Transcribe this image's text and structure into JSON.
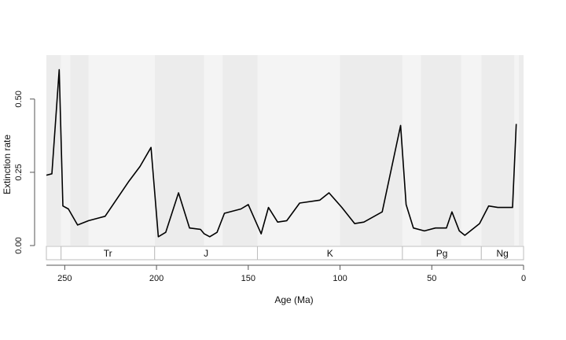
{
  "chart_data": {
    "type": "line",
    "title": "",
    "xlabel": "Age (Ma)",
    "ylabel": "Extinction rate",
    "x_reversed": true,
    "xlim": [
      260,
      0
    ],
    "ylim": [
      0,
      0.65
    ],
    "x_ticks": [
      "250",
      "200",
      "150",
      "100",
      "50",
      "0"
    ],
    "y_ticks": [
      "0.00",
      "0.25",
      "0.50"
    ],
    "grid": false,
    "line_color": "#000000",
    "band_colors": [
      "#ececec",
      "#f4f4f4"
    ],
    "stage_bands": [
      [
        260,
        252
      ],
      [
        252,
        247
      ],
      [
        247,
        237
      ],
      [
        237,
        201
      ],
      [
        201,
        174
      ],
      [
        174,
        164
      ],
      [
        164,
        145
      ],
      [
        145,
        100
      ],
      [
        100,
        66
      ],
      [
        66,
        56
      ],
      [
        56,
        34
      ],
      [
        34,
        23
      ],
      [
        23,
        5
      ],
      [
        5,
        2.6
      ],
      [
        2.6,
        0
      ]
    ],
    "periods": [
      {
        "name": "",
        "start": 260,
        "end": 252
      },
      {
        "name": "Tr",
        "start": 252,
        "end": 201
      },
      {
        "name": "J",
        "start": 201,
        "end": 145
      },
      {
        "name": "K",
        "start": 145,
        "end": 66
      },
      {
        "name": "Pg",
        "start": 66,
        "end": 23
      },
      {
        "name": "Ng",
        "start": 23,
        "end": 0
      }
    ],
    "series": [
      {
        "x": [
          260,
          257,
          253,
          251,
          248,
          243,
          237,
          228,
          215,
          209,
          203,
          199,
          195,
          188,
          182,
          176,
          174,
          171,
          167,
          163,
          154,
          150,
          143,
          139,
          134,
          129,
          122,
          111,
          106,
          99,
          92,
          87,
          77,
          67,
          64,
          60,
          54,
          48,
          44,
          42,
          39,
          35,
          32,
          24,
          19,
          14,
          10,
          6,
          4
        ],
        "y": [
          0.24,
          0.245,
          0.6,
          0.135,
          0.125,
          0.07,
          0.085,
          0.1,
          0.22,
          0.27,
          0.335,
          0.03,
          0.045,
          0.18,
          0.06,
          0.055,
          0.04,
          0.03,
          0.045,
          0.11,
          0.125,
          0.14,
          0.04,
          0.13,
          0.08,
          0.085,
          0.145,
          0.155,
          0.18,
          0.13,
          0.075,
          0.08,
          0.115,
          0.41,
          0.14,
          0.06,
          0.05,
          0.06,
          0.06,
          0.06,
          0.115,
          0.05,
          0.035,
          0.075,
          0.135,
          0.13,
          0.13,
          0.13,
          0.415
        ]
      }
    ]
  }
}
